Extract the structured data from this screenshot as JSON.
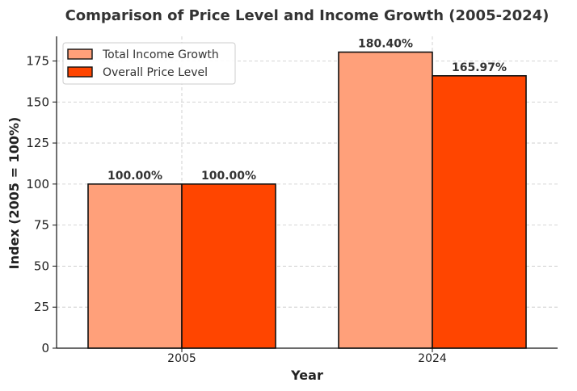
{
  "chart_data": {
    "type": "bar",
    "title": "Comparison of Price Level and Income Growth (2005-2024)",
    "xlabel": "Year",
    "ylabel": "Index (2005 = 100%)",
    "categories": [
      "2005",
      "2024"
    ],
    "ylim": [
      0,
      190
    ],
    "yticks": [
      0,
      25,
      50,
      75,
      100,
      125,
      150,
      175
    ],
    "grid": true,
    "legend_position": "top-left",
    "series": [
      {
        "name": "Total Income Growth",
        "values": [
          100.0,
          180.4
        ],
        "labels": [
          "100.00%",
          "180.40%"
        ],
        "color": "#FFA07A"
      },
      {
        "name": "Overall Price Level",
        "values": [
          100.0,
          165.97
        ],
        "labels": [
          "100.00%",
          "165.97%"
        ],
        "color": "#FF4500"
      }
    ]
  }
}
